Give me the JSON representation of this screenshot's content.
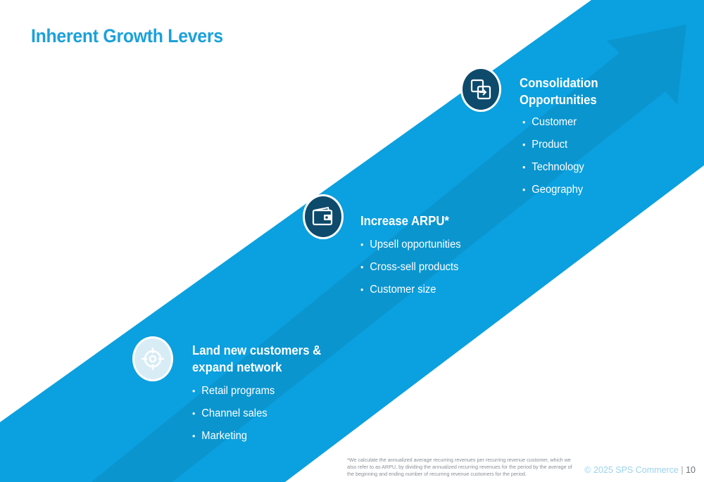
{
  "slide": {
    "title": "Inherent Growth Levers",
    "colors": {
      "band": "#0ba0df",
      "arrow": "#0a93cd",
      "dark_icon_bg": "#0e4a6b",
      "light_icon_bg": "#d8ecf6",
      "title": "#1ba1db"
    },
    "levers": [
      {
        "icon": "target-icon",
        "heading": "Land new customers & expand network",
        "items": [
          "Retail programs",
          "Channel sales",
          "Marketing"
        ]
      },
      {
        "icon": "wallet-icon",
        "heading": "Increase ARPU*",
        "items": [
          "Upsell opportunities",
          "Cross-sell products",
          "Customer size"
        ]
      },
      {
        "icon": "merge-icon",
        "heading": "Consolidation Opportunities",
        "items": [
          "Customer",
          "Product",
          "Technology",
          "Geography"
        ]
      }
    ],
    "footnote": "*We calculate the annualized average recurring revenues per recurring revenue customer, which we also refer to as ARPU, by dividing the annualized recurring revenues for the period by the average of the beginning and ending number of recurring revenue customers for the period.",
    "footer": {
      "copyright": "© 2025 SPS Commerce",
      "separator": "|",
      "page_number": "10"
    }
  }
}
